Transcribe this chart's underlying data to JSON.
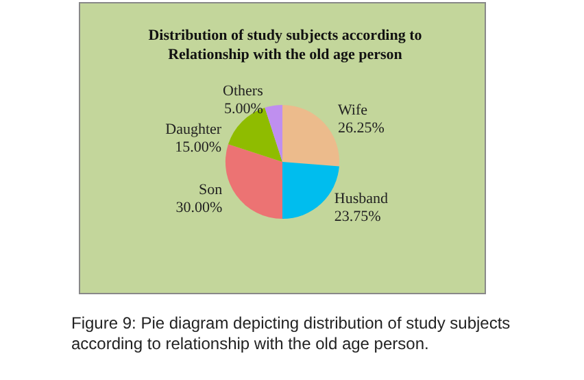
{
  "chart_data": {
    "type": "pie",
    "title": "Distribution of study subjects according to\nRelationship with the old age person",
    "categories": [
      "Wife",
      "Husband",
      "Son",
      "Daughter",
      "Others"
    ],
    "values": [
      26.25,
      23.75,
      30.0,
      15.0,
      5.0
    ],
    "value_labels": [
      "26.25%",
      "23.75%",
      "30.00%",
      "15.00%",
      "5.00%"
    ],
    "colors": [
      "#ecbb8c",
      "#00bdee",
      "#ec7373",
      "#8fbc00",
      "#bf8fef"
    ],
    "legend": false,
    "annotations": [
      "Figure 9: Pie diagram depicting distribution of study subjects according to relationship with the old age person."
    ]
  }
}
